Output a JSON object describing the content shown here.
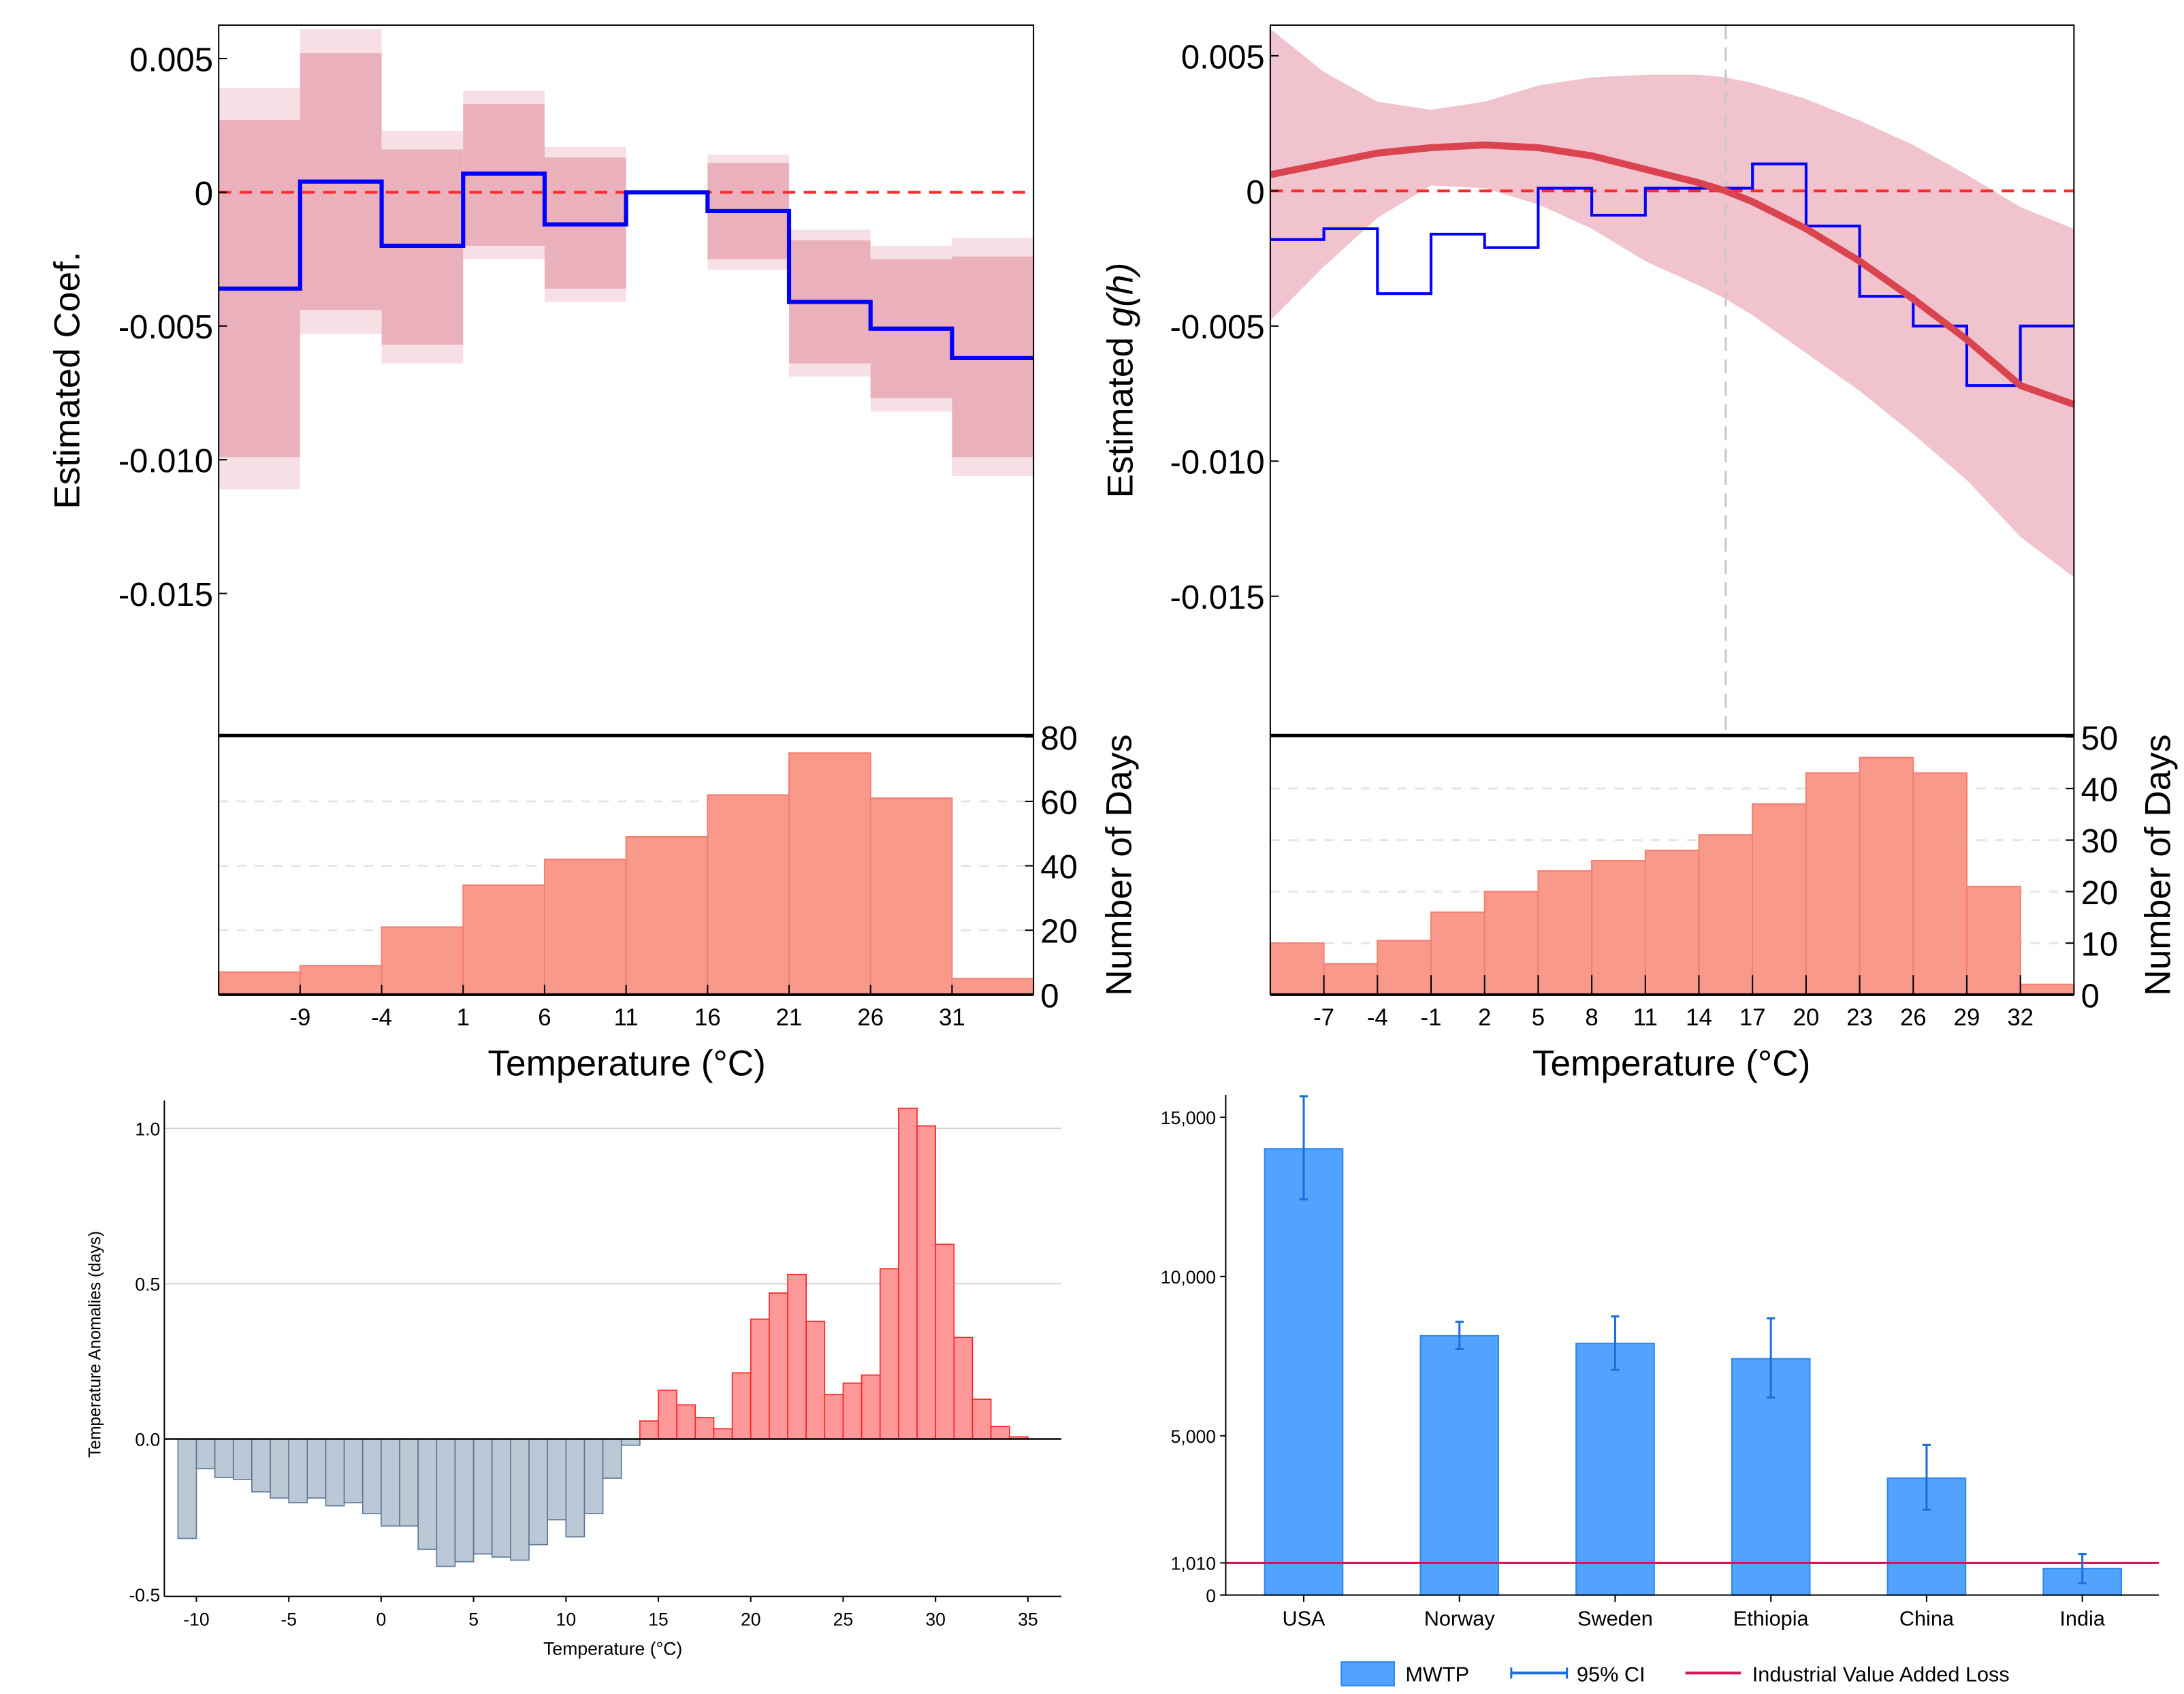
{
  "chart_data": [
    {
      "id": "panel-coef",
      "type": "step-line with ci bands and histogram",
      "ylabel": "Estimated Coef.",
      "xlabel": "Temperature (°C)",
      "hist_ylabel": "Number of Days",
      "ylim": [
        -0.0205,
        0.0062
      ],
      "yticks": [
        0.005,
        0,
        -0.005,
        -0.01,
        -0.015
      ],
      "ytick_labels": [
        "0.005",
        "0",
        "-0.005",
        "-0.010",
        "-0.015"
      ],
      "xlim": [
        -14,
        36
      ],
      "xticks": [
        -9,
        -4,
        1,
        6,
        11,
        16,
        21,
        26,
        31
      ],
      "xtick_labels": [
        "-9",
        "-4",
        "1",
        "6",
        "11",
        "16",
        "21",
        "26",
        "31"
      ],
      "bin_edges": [
        -14,
        -9,
        -4,
        1,
        6,
        11,
        16,
        21,
        26,
        31,
        36
      ],
      "coef": [
        -0.0036,
        0.0004,
        -0.002,
        0.0007,
        -0.0012,
        0,
        -0.0007,
        -0.0041,
        -0.0051,
        -0.0062
      ],
      "ci_inner": [
        [
          -0.0099,
          0.0027
        ],
        [
          -0.0044,
          0.0052
        ],
        [
          -0.0057,
          0.0016
        ],
        [
          -0.002,
          0.0033
        ],
        [
          -0.0036,
          0.0013
        ],
        null,
        [
          -0.0025,
          0.0011
        ],
        [
          -0.0064,
          -0.0018
        ],
        [
          -0.0077,
          -0.0025
        ],
        [
          -0.0099,
          -0.0024
        ]
      ],
      "ci_outer": [
        [
          -0.0111,
          0.0039
        ],
        [
          -0.0053,
          0.0061
        ],
        [
          -0.0064,
          0.0023
        ],
        [
          -0.0025,
          0.0038
        ],
        [
          -0.0041,
          0.0017
        ],
        null,
        [
          -0.0029,
          0.0014
        ],
        [
          -0.0069,
          -0.0014
        ],
        [
          -0.0082,
          -0.002
        ],
        [
          -0.0106,
          -0.0017
        ]
      ],
      "hist_values": [
        7,
        9,
        21,
        34,
        42,
        49,
        62,
        75,
        61,
        5
      ],
      "hist_ylim": [
        0,
        80
      ],
      "hist_yticks": [
        0,
        20,
        40,
        60,
        80
      ],
      "hist_ytick_labels": [
        "0",
        "20",
        "40",
        "60",
        "80"
      ],
      "colors": {
        "line": "#0000ff",
        "ci_inner": "#eab0bc",
        "ci_outer": "#f7e0e5",
        "zero": "#ff2a2a",
        "hist": "#f9998b"
      }
    },
    {
      "id": "panel-gh",
      "type": "curve with band, step-line and histogram",
      "ylabel_prefix": "Estimated ",
      "ylabel_func": "g(h)",
      "xlabel": "Temperature (°C)",
      "hist_ylabel": "Number of Days",
      "ylim": [
        -0.0205,
        0.0062
      ],
      "yticks": [
        0.005,
        0,
        -0.005,
        -0.01,
        -0.015
      ],
      "ytick_labels": [
        "0.005",
        "0",
        "-0.005",
        "-0.010",
        "-0.015"
      ],
      "xlim": [
        -10,
        35
      ],
      "xticks": [
        -7,
        -4,
        -1,
        2,
        5,
        8,
        11,
        14,
        17,
        20,
        23,
        26,
        29,
        32
      ],
      "xtick_labels": [
        "-7",
        "-4",
        "-1",
        "2",
        "5",
        "8",
        "11",
        "14",
        "17",
        "20",
        "23",
        "26",
        "29",
        "32"
      ],
      "vline_x": 15.5,
      "bin_edges": [
        -10,
        -7,
        -4,
        -1,
        2,
        5,
        8,
        11,
        14,
        17,
        20,
        23,
        26,
        29,
        32,
        35
      ],
      "step_values": [
        -0.0018,
        -0.0014,
        -0.0038,
        -0.0016,
        -0.0021,
        0.0001,
        -0.0009,
        0.0001,
        0.0001,
        0.001,
        -0.0013,
        -0.0039,
        -0.005,
        -0.0072,
        -0.005
      ],
      "curve_x": [
        -10,
        -7,
        -4,
        -1,
        2,
        5,
        8,
        11,
        14,
        15.5,
        17,
        20,
        23,
        26,
        29,
        32,
        35
      ],
      "curve_y": [
        0.0006,
        0.001,
        0.0014,
        0.0016,
        0.0017,
        0.0016,
        0.0013,
        0.0008,
        0.0003,
        0,
        -0.0004,
        -0.0014,
        -0.0026,
        -0.004,
        -0.0055,
        -0.0072,
        -0.0079
      ],
      "band_lower": [
        -0.0048,
        -0.0028,
        -0.001,
        0.0002,
        0.0001,
        -0.0005,
        -0.0014,
        -0.0026,
        -0.0035,
        -0.004,
        -0.0046,
        -0.006,
        -0.0074,
        -0.009,
        -0.0107,
        -0.0128,
        -0.0143
      ],
      "band_upper": [
        0.006,
        0.0044,
        0.0033,
        0.003,
        0.0033,
        0.0039,
        0.0042,
        0.0043,
        0.0043,
        0.0042,
        0.004,
        0.0034,
        0.0026,
        0.0017,
        0.0006,
        -0.0006,
        -0.0014
      ],
      "hist_values": [
        10,
        6,
        10.5,
        16,
        20,
        24,
        26,
        28,
        31,
        37,
        43,
        46,
        43,
        21,
        2
      ],
      "hist_ylim": [
        0,
        50
      ],
      "hist_yticks": [
        0,
        10,
        20,
        30,
        40,
        50
      ],
      "hist_ytick_labels": [
        "0",
        "10",
        "20",
        "30",
        "40",
        "50"
      ],
      "colors": {
        "line": "#0000ff",
        "curve": "#d9444f",
        "band": "#f1c3cf",
        "zero": "#ff2a2a",
        "hist": "#f9998b"
      }
    },
    {
      "id": "panel-anomalies",
      "type": "bar",
      "ylabel": "Temperature Anomalies (days)",
      "xlabel": "Temperature (°C)",
      "ylim": [
        -0.5,
        1.1
      ],
      "yticks": [
        1.0,
        0.5,
        0.0,
        -0.5
      ],
      "ytick_labels": [
        "1.0",
        "0.5",
        "0.0",
        "-0.5"
      ],
      "xlim": [
        -11.7,
        36.7
      ],
      "xticks": [
        -10,
        -5,
        0,
        5,
        10,
        15,
        20,
        25,
        30,
        35
      ],
      "xtick_labels": [
        "-10",
        "-5",
        "0",
        "5",
        "10",
        "15",
        "20",
        "25",
        "30",
        "35"
      ],
      "bin_start": -11,
      "bin_width": 1,
      "values": [
        -0.32,
        -0.095,
        -0.124,
        -0.13,
        -0.17,
        -0.19,
        -0.205,
        -0.19,
        -0.215,
        -0.205,
        -0.24,
        -0.28,
        -0.28,
        -0.355,
        -0.41,
        -0.395,
        -0.37,
        -0.38,
        -0.39,
        -0.34,
        -0.26,
        -0.315,
        -0.24,
        -0.126,
        -0.02,
        0.058,
        0.157,
        0.11,
        0.069,
        0.033,
        0.213,
        0.386,
        0.47,
        0.53,
        0.379,
        0.143,
        0.18,
        0.206,
        0.548,
        1.065,
        1.008,
        0.627,
        0.327,
        0.128,
        0.041,
        0.007
      ],
      "colors": {
        "negative_fill": "#bcc8d5",
        "negative_stroke": "#5a7796",
        "positive_fill": "#ff9999",
        "positive_stroke": "#ff2020"
      }
    },
    {
      "id": "panel-mwtp",
      "type": "bar",
      "categories": [
        "USA",
        "Norway",
        "Sweden",
        "Ethiopia",
        "China",
        "India"
      ],
      "series": [
        {
          "name": "MWTP",
          "values": [
            14010,
            8140,
            7900,
            7420,
            3670,
            830
          ]
        }
      ],
      "ci": [
        [
          12420,
          15660
        ],
        [
          7720,
          8580
        ],
        [
          7070,
          8750
        ],
        [
          6200,
          8690
        ],
        [
          2680,
          4710
        ],
        [
          370,
          1285
        ]
      ],
      "hline": {
        "name": "Industrial Value Added Loss",
        "value": 1010
      },
      "ylim": [
        0,
        15800
      ],
      "yticks": [
        0,
        1010,
        5000,
        10000,
        15000
      ],
      "ytick_labels": [
        "0",
        "1,010",
        "5,000",
        "10,000",
        "15,000"
      ],
      "legend": {
        "position": "bottom",
        "items": [
          "MWTP",
          "95% CI",
          "Industrial Value Added Loss"
        ]
      },
      "colors": {
        "bar": "#52a3ff",
        "bar_stroke": "#2f86f0",
        "ci": "#1c6fdc",
        "hline": "#d0185a"
      }
    }
  ]
}
